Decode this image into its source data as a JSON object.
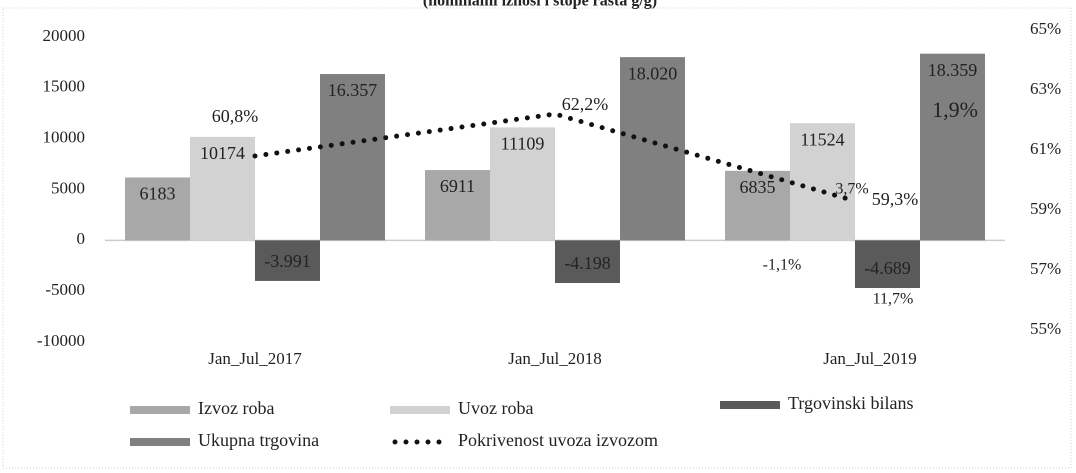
{
  "chart_data": {
    "type": "bar",
    "subtitle": "(nominalni iznosi i stope rasta g/g)",
    "categories": [
      "Jan_Jul_2017",
      "Jan_Jul_2018",
      "Jan_Jul_2019"
    ],
    "series": [
      {
        "name": "Izvoz roba",
        "color": "#a8a8a8",
        "values": [
          6183,
          6911,
          6835
        ]
      },
      {
        "name": "Uvoz roba",
        "color": "#d2d2d2",
        "values": [
          10174,
          11109,
          11524
        ]
      },
      {
        "name": "Trgovinski bilans",
        "color": "#5a5a5a",
        "values": [
          -3991,
          -4198,
          -4689
        ],
        "value_labels": [
          "-3.991",
          "-4.198",
          "-4.689"
        ]
      },
      {
        "name": "Ukupna trgovina",
        "color": "#808080",
        "values": [
          16357,
          18020,
          18359
        ],
        "value_labels": [
          "16.357",
          "18.020",
          "18.359"
        ]
      },
      {
        "name": "Pokrivenost uvoza izvozom",
        "type": "line",
        "axis": "y2",
        "color": "#111111",
        "values": [
          60.8,
          62.2,
          59.3
        ],
        "value_labels": [
          "60,8%",
          "62,2%",
          "59,3%"
        ]
      }
    ],
    "annotations": [
      "-1,1%",
      "3,7%",
      "11,7%",
      "1,9%"
    ],
    "ylim": [
      -10000,
      20000
    ],
    "yticks": [
      -10000,
      -5000,
      0,
      5000,
      10000,
      15000,
      20000
    ],
    "y2lim": [
      55,
      65
    ],
    "y2ticks": [
      {
        "value": 55,
        "label": "55%"
      },
      {
        "value": 57,
        "label": "57%"
      },
      {
        "value": 59,
        "label": "59%"
      },
      {
        "value": 61,
        "label": "61%"
      },
      {
        "value": 63,
        "label": "63%"
      },
      {
        "value": 65,
        "label": "65%"
      }
    ]
  }
}
